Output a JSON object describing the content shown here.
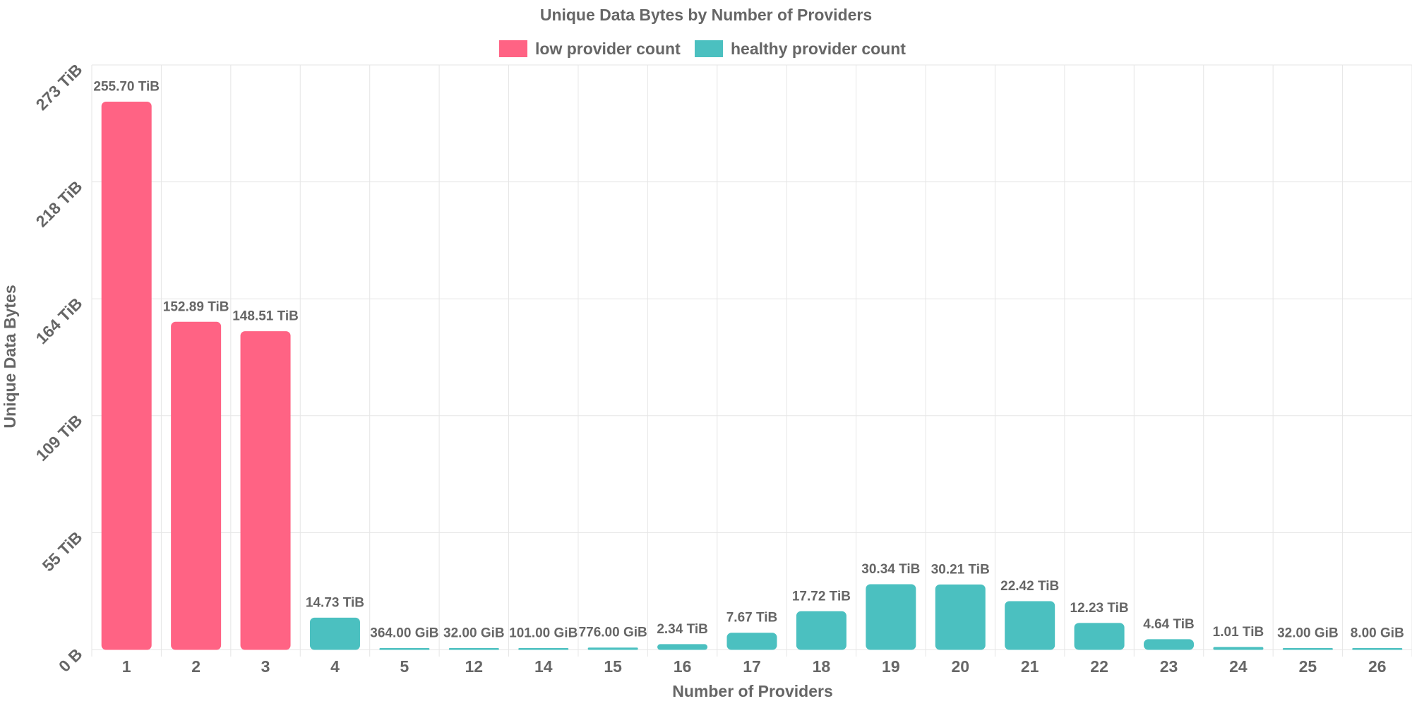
{
  "chart_data": {
    "type": "bar",
    "title": "Unique Data Bytes by Number of Providers",
    "xlabel": "Number of Providers",
    "ylabel": "Unique Data Bytes",
    "categories": [
      "1",
      "2",
      "3",
      "4",
      "5",
      "12",
      "14",
      "15",
      "16",
      "17",
      "18",
      "19",
      "20",
      "21",
      "22",
      "23",
      "24",
      "25",
      "26"
    ],
    "values_tib": [
      255.7,
      152.89,
      148.51,
      14.73,
      0.3555,
      0.03125,
      0.0986,
      0.7578,
      2.34,
      7.67,
      17.72,
      30.34,
      30.21,
      22.42,
      12.23,
      4.64,
      1.01,
      0.03125,
      0.0078
    ],
    "data_labels": [
      "255.70 TiB",
      "152.89 TiB",
      "148.51 TiB",
      "14.73 TiB",
      "364.00 GiB",
      "32.00 GiB",
      "101.00 GiB",
      "776.00 GiB",
      "2.34 TiB",
      "7.67 TiB",
      "17.72 TiB",
      "30.34 TiB",
      "30.21 TiB",
      "22.42 TiB",
      "12.23 TiB",
      "4.64 TiB",
      "1.01 TiB",
      "32.00 GiB",
      "8.00 GiB"
    ],
    "series_assignment": [
      "low",
      "low",
      "low",
      "healthy",
      "healthy",
      "healthy",
      "healthy",
      "healthy",
      "healthy",
      "healthy",
      "healthy",
      "healthy",
      "healthy",
      "healthy",
      "healthy",
      "healthy",
      "healthy",
      "healthy",
      "healthy"
    ],
    "series": [
      {
        "key": "low",
        "name": "low provider count",
        "color": "#ff6384"
      },
      {
        "key": "healthy",
        "name": "healthy provider count",
        "color": "#4bc0c0"
      }
    ],
    "y_ticks": [
      {
        "value": 0,
        "label": "0 B"
      },
      {
        "value": 54.6,
        "label": "55 TiB"
      },
      {
        "value": 109.2,
        "label": "109 TiB"
      },
      {
        "value": 163.8,
        "label": "164 TiB"
      },
      {
        "value": 218.4,
        "label": "218 TiB"
      },
      {
        "value": 273.0,
        "label": "273 TiB"
      }
    ],
    "ylim": [
      0,
      273
    ],
    "grid": true,
    "legend_position": "top"
  }
}
